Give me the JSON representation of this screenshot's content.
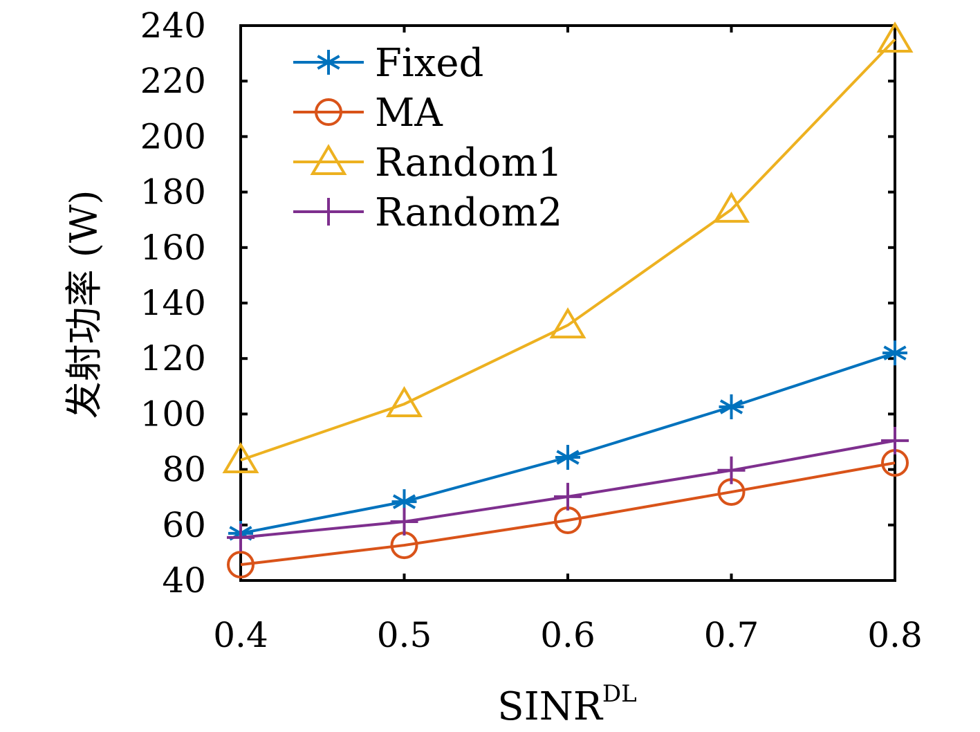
{
  "chart_data": {
    "type": "line",
    "xlabel": "SINR",
    "xlabel_superscript": "DL",
    "ylabel": "发射功率 (W)",
    "xlim": [
      0.4,
      0.8
    ],
    "ylim": [
      40,
      240
    ],
    "xticks": [
      0.4,
      0.5,
      0.6,
      0.7,
      0.8
    ],
    "xtick_labels": [
      "0.4",
      "0.5",
      "0.6",
      "0.7",
      "0.8"
    ],
    "yticks": [
      40,
      60,
      80,
      100,
      120,
      140,
      160,
      180,
      200,
      220,
      240
    ],
    "ytick_labels": [
      "40",
      "60",
      "80",
      "100",
      "120",
      "140",
      "160",
      "180",
      "200",
      "220",
      "240"
    ],
    "grid": false,
    "legend_position": "top-left",
    "x": [
      0.4,
      0.5,
      0.6,
      0.7,
      0.8
    ],
    "series": [
      {
        "name": "Fixed",
        "color": "#0072BD",
        "marker": "asterisk",
        "values": [
          57,
          68.4,
          84.4,
          102.6,
          122
        ]
      },
      {
        "name": "MA",
        "color": "#D95319",
        "marker": "circle",
        "values": [
          45.7,
          52.7,
          61.7,
          71.9,
          82.4
        ]
      },
      {
        "name": "Random1",
        "color": "#EDB120",
        "marker": "triangle",
        "values": [
          83.4,
          103.6,
          132,
          173.7,
          235
        ]
      },
      {
        "name": "Random2",
        "color": "#7E2F8E",
        "marker": "plus",
        "values": [
          55.5,
          61.2,
          70.2,
          79.7,
          90.4
        ]
      }
    ]
  }
}
